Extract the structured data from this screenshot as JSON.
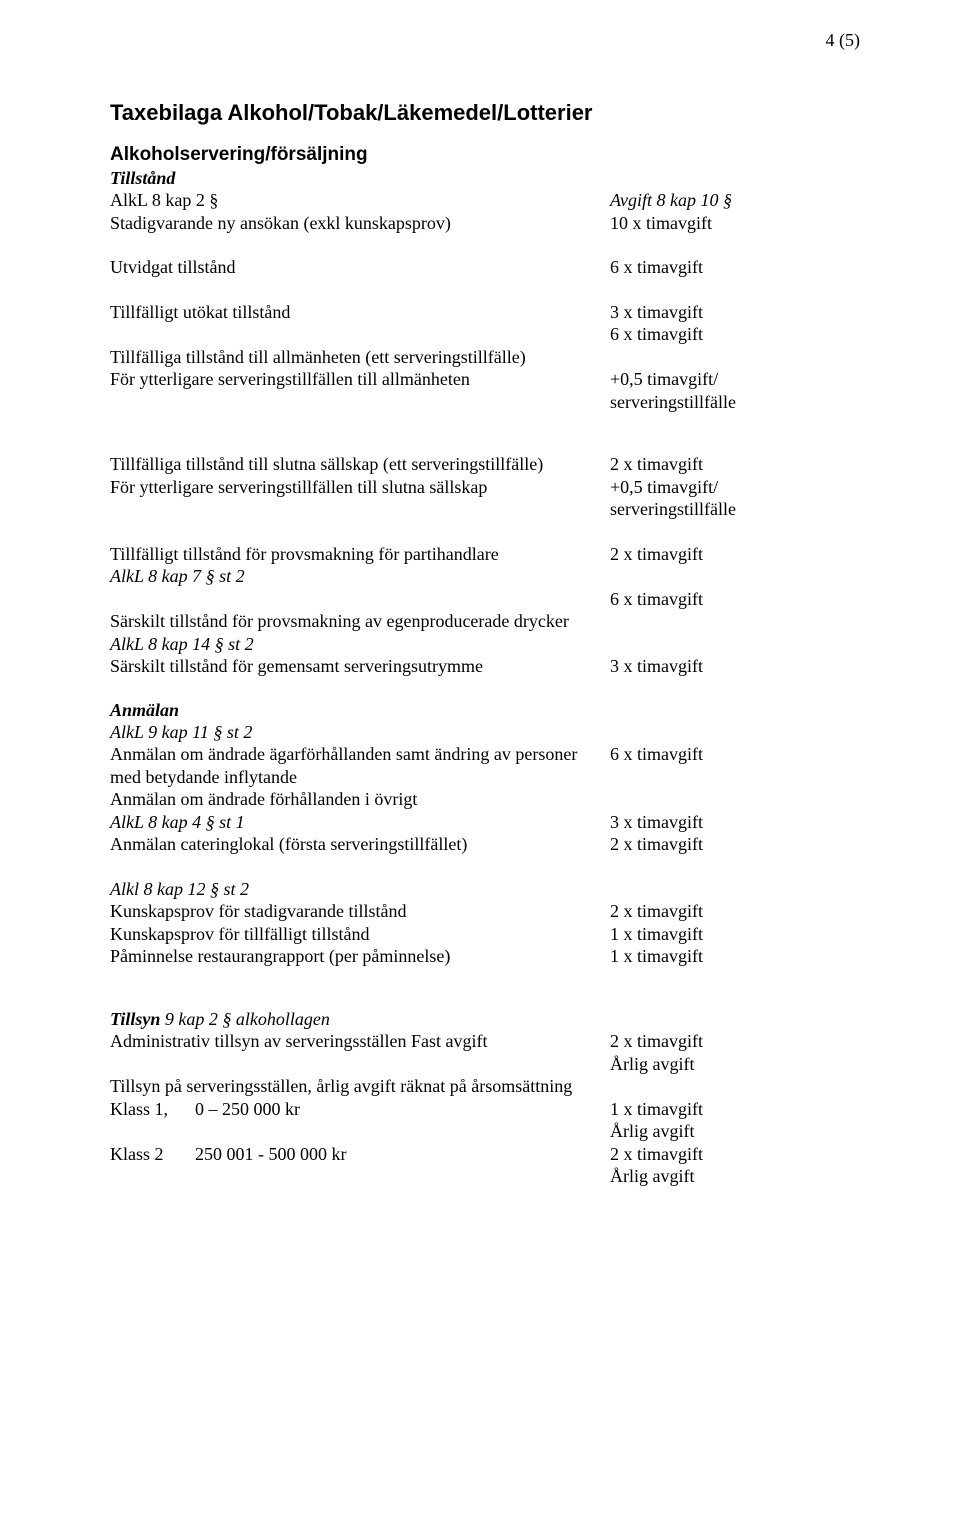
{
  "page_num": "4 (5)",
  "title": "Taxebilaga Alkohol/Tobak/Läkemedel/Lotterier",
  "subtitle": "Alkoholservering/försäljning",
  "s1": {
    "hdr": "Tillstånd",
    "l1": "AlkL 8 kap 2 §",
    "r1": "Avgift 8 kap 10 §",
    "l2": "Stadigvarande ny ansökan (exkl kunskapsprov)",
    "r2": "10 x timavgift",
    "l3": "Utvidgat tillstånd",
    "r3": "6 x timavgift",
    "l4": "Tillfälligt utökat tillstånd",
    "r4": "3 x timavgift",
    "r5": "6 x timavgift",
    "l6": "Tillfälliga tillstånd till allmänheten (ett serveringstillfälle)",
    "l7": "För ytterligare serveringstillfällen till allmänheten",
    "r7": "+0,5 timavgift/",
    "r8": "serveringstillfälle"
  },
  "s2": {
    "l1": "Tillfälliga tillstånd till slutna sällskap (ett serveringstillfälle)",
    "r1": "2 x timavgift",
    "l2": "För ytterligare serveringstillfällen till slutna sällskap",
    "r2": "+0,5 timavgift/",
    "r3": "serveringstillfälle",
    "l4": "Tillfälligt tillstånd för provsmakning för partihandlare",
    "r4": "2 x timavgift",
    "l5": "AlkL 8 kap 7 § st 2",
    "r6": "6 x timavgift",
    "l7": "Särskilt tillstånd för provsmakning av egenproducerade drycker",
    "l8": "AlkL 8 kap 14 § st 2",
    "l9": "Särskilt tillstånd för gemensamt serveringsutrymme",
    "r9": "3 x timavgift"
  },
  "s3": {
    "hdr": "Anmälan",
    "l1": "AlkL 9 kap 11 § st 2",
    "l2": "Anmälan om ändrade ägarförhållanden samt ändring av personer",
    "r2": "6 x timavgift",
    "l3": "med betydande inflytande",
    "l4": "Anmälan om ändrade förhållanden i övrigt",
    "l5": "AlkL 8 kap 4 § st 1",
    "r5": "3 x timavgift",
    "l6": "Anmälan cateringlokal (första serveringstillfället)",
    "r6": "2 x timavgift"
  },
  "s4": {
    "l1": "Alkl 8 kap 12 § st 2",
    "l2": "Kunskapsprov för stadigvarande tillstånd",
    "r2": "2 x timavgift",
    "l3": "Kunskapsprov för tillfälligt tillstånd",
    "r3": "1 x timavgift",
    "l4": "Påminnelse restaurangrapport (per påminnelse)",
    "r4": "1 x timavgift"
  },
  "s5": {
    "l1a": "Tillsyn",
    "l1b": "  9 kap 2 § alkohollagen",
    "l2": "Administrativ tillsyn av serveringsställen Fast avgift",
    "r2": "2 x timavgift",
    "r3": "Årlig avgift",
    "l4": "Tillsyn på serveringsställen, årlig avgift räknat på årsomsättning",
    "l5": "Klass 1,      0 – 250 000 kr",
    "r5": "1 x timavgift",
    "r6": "Årlig avgift",
    "l7": "Klass 2       250 001 - 500 000 kr",
    "r7": "2 x timavgift",
    "r8": "Årlig avgift"
  }
}
